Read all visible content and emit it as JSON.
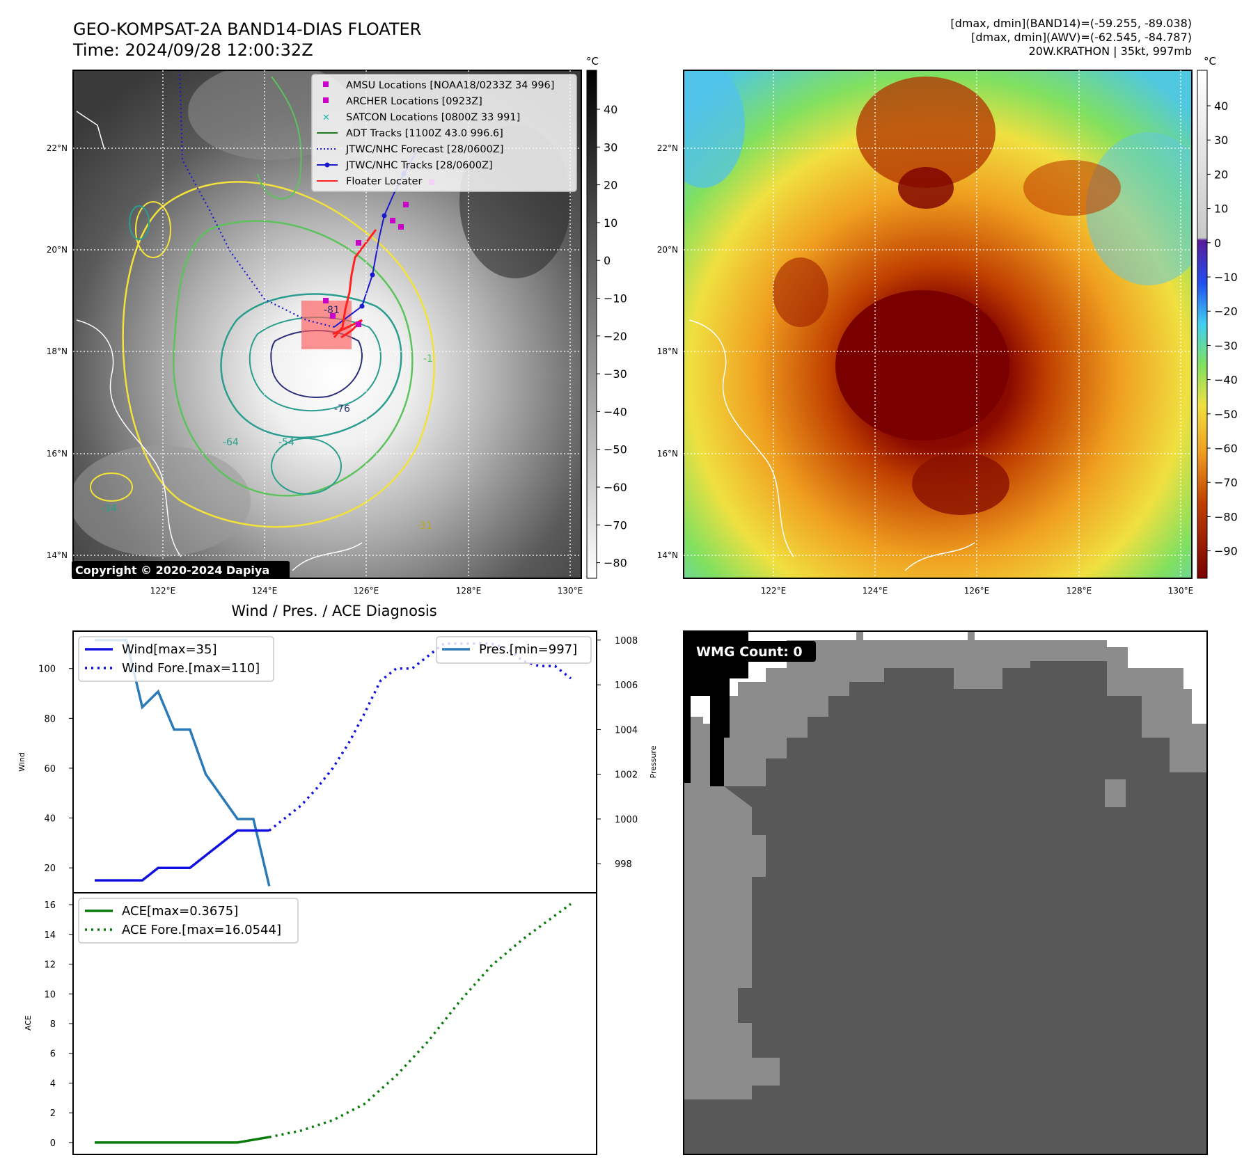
{
  "header": {
    "title_line1": "GEO-KOMPSAT-2A BAND14-DIAS FLOATER",
    "title_line2": "Time: 2024/09/28 12:00:32Z",
    "info_line1": "[dmax, dmin](BAND14)=(-59.255, -89.038)",
    "info_line2": "[dmax, dmin](AWV)=(-62.545, -84.787)",
    "info_line3": "20W.KRATHON | 35kt, 997mb"
  },
  "map": {
    "lat_labels": [
      "22°N",
      "20°N",
      "18°N",
      "16°N",
      "14°N"
    ],
    "lon_labels": [
      "122°E",
      "124°E",
      "126°E",
      "128°E",
      "130°E"
    ],
    "copyright": "Copyright © 2020-2024 Dapiya",
    "unit": "°C",
    "contour_labels": [
      "-81",
      "-76",
      "-64",
      "-54",
      "-34",
      "-31",
      "-1"
    ],
    "legend": [
      {
        "label": "AMSU Locations [NOAA18/0233Z 34 996]",
        "color": "#c800c8",
        "marker": "square"
      },
      {
        "label": "ARCHER Locations [0923Z]",
        "color": "#c800c8",
        "marker": "square"
      },
      {
        "label": "SATCON Locations [0800Z 33 991]",
        "color": "#1fb8b8",
        "marker": "x"
      },
      {
        "label": "ADT Tracks [1100Z 43.0 996.6]",
        "color": "#1a7a1a",
        "marker": "line"
      },
      {
        "label": "JTWC/NHC Forecast [28/0600Z]",
        "color": "#1a1acc",
        "marker": "dotted"
      },
      {
        "label": "JTWC/NHC Tracks [28/0600Z]",
        "color": "#1a1acc",
        "marker": "line-dot"
      },
      {
        "label": "Floater Locater",
        "color": "#ff2020",
        "marker": "line"
      }
    ],
    "gray_colorbar_ticks": [
      "40",
      "30",
      "20",
      "10",
      "0",
      "−10",
      "−20",
      "−30",
      "−40",
      "−50",
      "−60",
      "−70",
      "−80"
    ],
    "color_colorbar_ticks": [
      "40",
      "30",
      "20",
      "10",
      "0",
      "−10",
      "−20",
      "−30",
      "−40",
      "−50",
      "−60",
      "−70",
      "−80",
      "−90"
    ],
    "colors": {
      "contour_yellow": "#f2e23a",
      "contour_green": "#5cc25c",
      "contour_teal": "#2a9d8f",
      "contour_navy": "#2b2f7a",
      "eye_red": "#7a0000"
    }
  },
  "diagnosis": {
    "title": "Wind / Pres. / ACE Diagnosis",
    "wind_ylabel": "Wind",
    "pres_ylabel": "Pressure",
    "ace_ylabel": "ACE",
    "wind_yticks": [
      "100",
      "80",
      "60",
      "40",
      "20"
    ],
    "pres_yticks": [
      "1008",
      "1006",
      "1004",
      "1002",
      "1000",
      "998"
    ],
    "ace_yticks": [
      "16",
      "14",
      "12",
      "10",
      "8",
      "6",
      "4",
      "2",
      "0"
    ],
    "legend_wind": "Wind[max=35]",
    "legend_wind_fore": "Wind Fore.[max=110]",
    "legend_pres": "Pres.[min=997]",
    "legend_ace": "ACE[max=0.3675]",
    "legend_ace_fore": "ACE Fore.[max=16.0544]"
  },
  "wmg": {
    "label": "WMG Count: 0",
    "colors": {
      "white": "#ffffff",
      "light": "#8c8c8c",
      "dark": "#585858",
      "black": "#000000"
    }
  },
  "chart_data": [
    {
      "type": "line",
      "title": "Wind / Pres. / ACE Diagnosis",
      "ylabel": "Wind",
      "ylim": [
        10,
        115
      ],
      "series": [
        {
          "name": "Wind[max=35]",
          "x": [
            0,
            1,
            2,
            3,
            4,
            5,
            6,
            7,
            8,
            9,
            10,
            11
          ],
          "values": [
            15,
            15,
            15,
            15,
            20,
            20,
            20,
            25,
            30,
            35,
            35,
            35
          ]
        },
        {
          "name": "Wind Fore.[max=110]",
          "x": [
            11,
            12,
            13,
            14,
            15,
            16,
            17,
            18,
            19,
            20,
            21,
            22,
            23,
            24,
            25,
            26,
            27,
            28,
            29,
            30
          ],
          "values": [
            35,
            40,
            45,
            52,
            60,
            70,
            82,
            95,
            100,
            100,
            105,
            110,
            110,
            110,
            110,
            108,
            103,
            101,
            101,
            96
          ]
        }
      ]
    },
    {
      "type": "line",
      "ylabel": "Pressure",
      "ylim": [
        996.7,
        1008.4
      ],
      "series": [
        {
          "name": "Pres.[min=997]",
          "x": [
            0,
            1,
            2,
            3,
            4,
            5,
            6,
            7,
            8,
            9,
            10,
            11
          ],
          "values": [
            1008,
            1008,
            1008,
            1005,
            1005.7,
            1004,
            1004,
            1002,
            1001,
            1000,
            1000,
            997
          ]
        }
      ]
    },
    {
      "type": "line",
      "ylabel": "ACE",
      "ylim": [
        -0.8,
        16.8
      ],
      "series": [
        {
          "name": "ACE[max=0.3675]",
          "x": [
            0,
            3,
            6,
            9,
            11
          ],
          "values": [
            0,
            0,
            0,
            0,
            0.3675
          ]
        },
        {
          "name": "ACE Fore.[max=16.0544]",
          "x": [
            11,
            13,
            15,
            17,
            19,
            21,
            23,
            25,
            27,
            30
          ],
          "values": [
            0.3675,
            0.8,
            1.5,
            2.6,
            4.5,
            6.8,
            9.5,
            11.9,
            13.7,
            16.0544
          ]
        }
      ]
    }
  ]
}
